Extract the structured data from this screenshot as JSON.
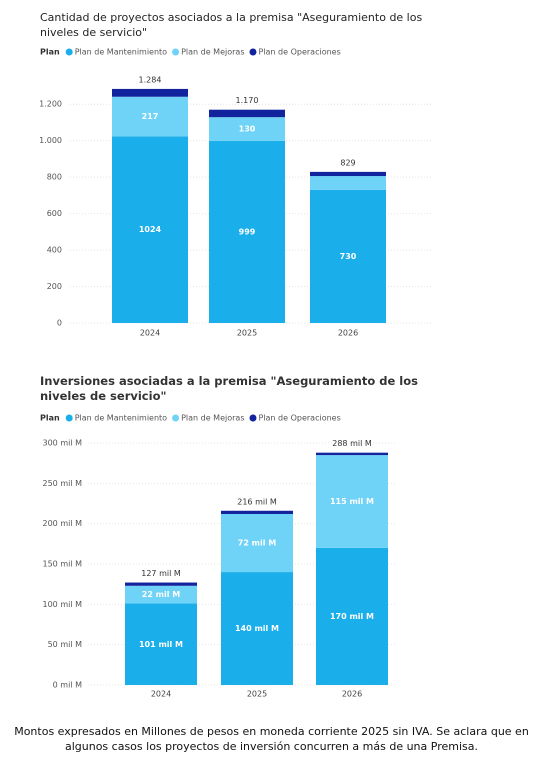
{
  "chart_data": [
    {
      "type": "bar",
      "stacked": true,
      "title": "Cantidad de proyectos asociados a la premisa \"Aseguramiento de los niveles de servicio\"",
      "legend_title": "Plan",
      "categories": [
        "2024",
        "2025",
        "2026"
      ],
      "series": [
        {
          "name": "Plan de Mantenimiento",
          "color": "#1aaeea",
          "values": [
            1024,
            999,
            730
          ]
        },
        {
          "name": "Plan de Mejoras",
          "color": "#6fd2f7",
          "values": [
            217,
            130,
            76
          ]
        },
        {
          "name": "Plan de Operaciones",
          "color": "#12239e",
          "values": [
            43,
            41,
            23
          ]
        }
      ],
      "totals": [
        {
          "value": 1284,
          "label": "1.284"
        },
        {
          "value": 1170,
          "label": "1.170"
        },
        829
      ],
      "ylim": [
        0,
        1300
      ],
      "yticks": [
        0,
        200,
        400,
        600,
        800,
        {
          "value": 1000,
          "label": "1.000"
        },
        {
          "value": 1200,
          "label": "1.200"
        }
      ],
      "grid": true
    },
    {
      "type": "bar",
      "stacked": true,
      "title": "Inversiones asociadas a la premisa \"Aseguramiento de los niveles de servicio\"",
      "legend_title": "Plan",
      "categories": [
        "2024",
        "2025",
        "2026"
      ],
      "series": [
        {
          "name": "Plan de Mantenimiento",
          "color": "#1aaeea",
          "values": [
            101,
            140,
            170
          ],
          "value_labels": [
            "101 mil M",
            "140 mil M",
            "170 mil M"
          ]
        },
        {
          "name": "Plan de Mejoras",
          "color": "#6fd2f7",
          "values": [
            22,
            72,
            115
          ],
          "value_labels": [
            "22 mil M",
            "72 mil M",
            "115 mil M"
          ]
        },
        {
          "name": "Plan de Operaciones",
          "color": "#12239e",
          "values": [
            4,
            4,
            3
          ]
        }
      ],
      "totals": [
        {
          "value": 127,
          "label": "127 mil M"
        },
        {
          "value": 216,
          "label": "216 mil M"
        },
        {
          "value": 288,
          "label": "288 mil M"
        }
      ],
      "ylim": [
        0,
        300
      ],
      "yticks": [
        {
          "value": 0,
          "label": "0 mil M"
        },
        {
          "value": 50,
          "label": "50 mil M"
        },
        {
          "value": 100,
          "label": "100 mil M"
        },
        {
          "value": 150,
          "label": "150 mil M"
        },
        {
          "value": 200,
          "label": "200 mil M"
        },
        {
          "value": 250,
          "label": "250 mil M"
        },
        {
          "value": 300,
          "label": "300 mil M"
        }
      ],
      "grid": true
    }
  ],
  "caption": "Montos expresados en Millones de pesos en moneda corriente 2025 sin IVA. Se aclara que en algunos casos los proyectos de inversión concurren a más de una Premisa."
}
